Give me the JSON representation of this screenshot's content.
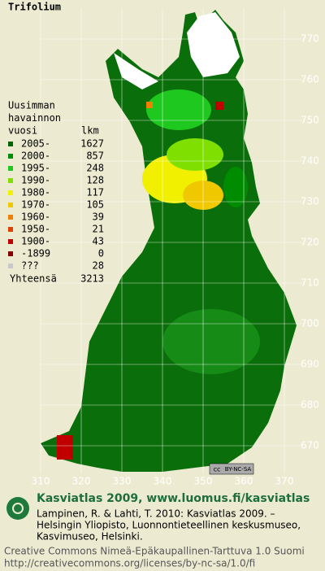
{
  "title": "Trifolium",
  "legend": {
    "heading": [
      "Uusimman",
      "havainnon",
      "vuosi"
    ],
    "count_heading": "lkm",
    "rows": [
      {
        "label": "2005-",
        "count": 1627,
        "color": "#006400"
      },
      {
        "label": "2000-",
        "count": 857,
        "color": "#008c00"
      },
      {
        "label": "1995-",
        "count": 248,
        "color": "#1ec81e"
      },
      {
        "label": "1990-",
        "count": 128,
        "color": "#7fe000"
      },
      {
        "label": "1980-",
        "count": 117,
        "color": "#f0f000"
      },
      {
        "label": "1970-",
        "count": 105,
        "color": "#f0c800"
      },
      {
        "label": "1960-",
        "count": 39,
        "color": "#f08000"
      },
      {
        "label": "1950-",
        "count": 21,
        "color": "#e04000"
      },
      {
        "label": "1900-",
        "count": 43,
        "color": "#c00000"
      },
      {
        "label": "-1899",
        "count": 0,
        "color": "#800000"
      },
      {
        "label": "???",
        "count": 28,
        "color": "#c8c8c8"
      }
    ],
    "total_label": "Yhteensä",
    "total": 3213
  },
  "grid": {
    "x_labels": [
      310,
      320,
      330,
      340,
      350,
      360,
      370
    ],
    "y_labels": [
      770,
      760,
      750,
      740,
      730,
      720,
      710,
      700,
      690,
      680,
      670
    ]
  },
  "badge": {
    "cc": "cc",
    "license": "BY-NC-SA"
  },
  "footer": {
    "heading": "Kasviatlas 2009, www.luomus.fi/kasviatlas",
    "citation": [
      "Lampinen, R. & Lahti, T. 2010: Kasviatlas 2009. –",
      "Helsingin Yliopisto, Luonnontieteellinen keskusmuseo,",
      "Kasvimuseo, Helsinki."
    ],
    "license": [
      "Creative Commons Nimeä-Epäkaupallinen-Tarttuva 1.0 Suomi",
      "http://creativecommons.org/licenses/by-nc-sa/1.0/fi"
    ]
  }
}
